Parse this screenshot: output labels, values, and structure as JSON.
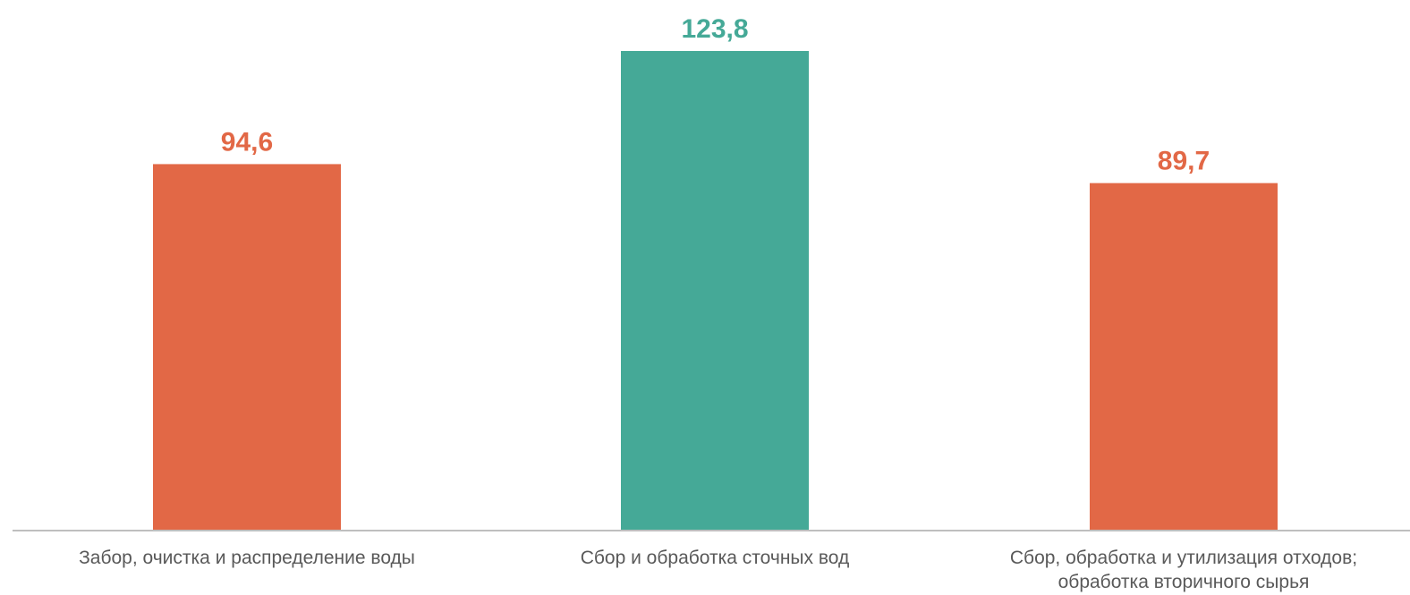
{
  "chart_data": {
    "type": "bar",
    "categories": [
      [
        "Забор, очистка и распределение воды"
      ],
      [
        "Сбор и обработка сточных вод"
      ],
      [
        "Сбор, обработка и утилизация отходов;",
        "обработка вторичного сырья"
      ]
    ],
    "values": [
      94.6,
      123.8,
      89.7
    ],
    "value_labels": [
      "94,6",
      "123,8",
      "89,7"
    ],
    "bar_colors": [
      "#e26846",
      "#45a997",
      "#e26846"
    ],
    "axis_color": "#bfbfbf",
    "title": "",
    "xlabel": "",
    "ylabel": "",
    "ylim": [
      0,
      130
    ],
    "grid": false,
    "legend": "none"
  }
}
